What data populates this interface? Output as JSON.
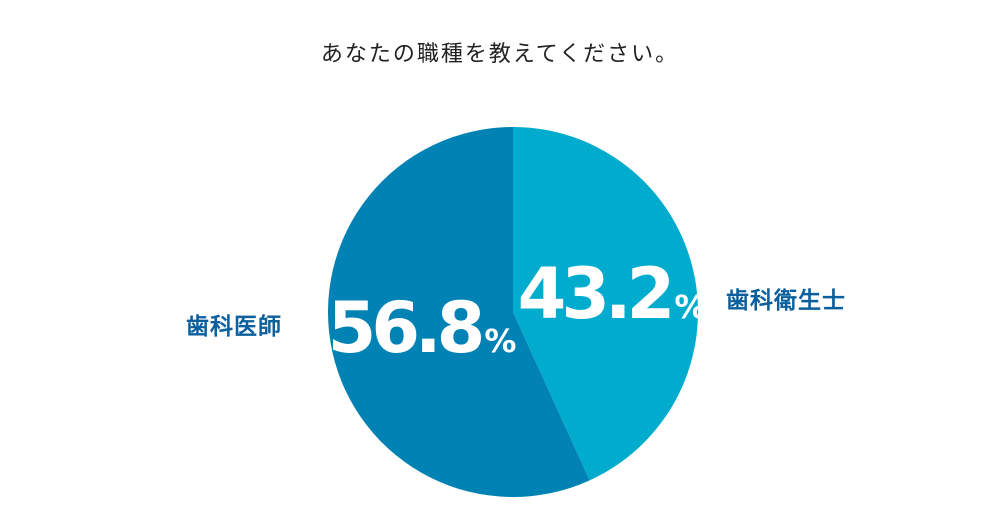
{
  "chart_data": {
    "type": "pie",
    "title": "あなたの職種を教えてください。",
    "categories": [
      "歯科衛生士",
      "歯科医師"
    ],
    "values": [
      43.2,
      56.8
    ],
    "unit": "%",
    "colors": [
      "#00acce",
      "#0082b4"
    ],
    "label_color": "#0b5f9c",
    "value_text_color": "#ffffff"
  }
}
